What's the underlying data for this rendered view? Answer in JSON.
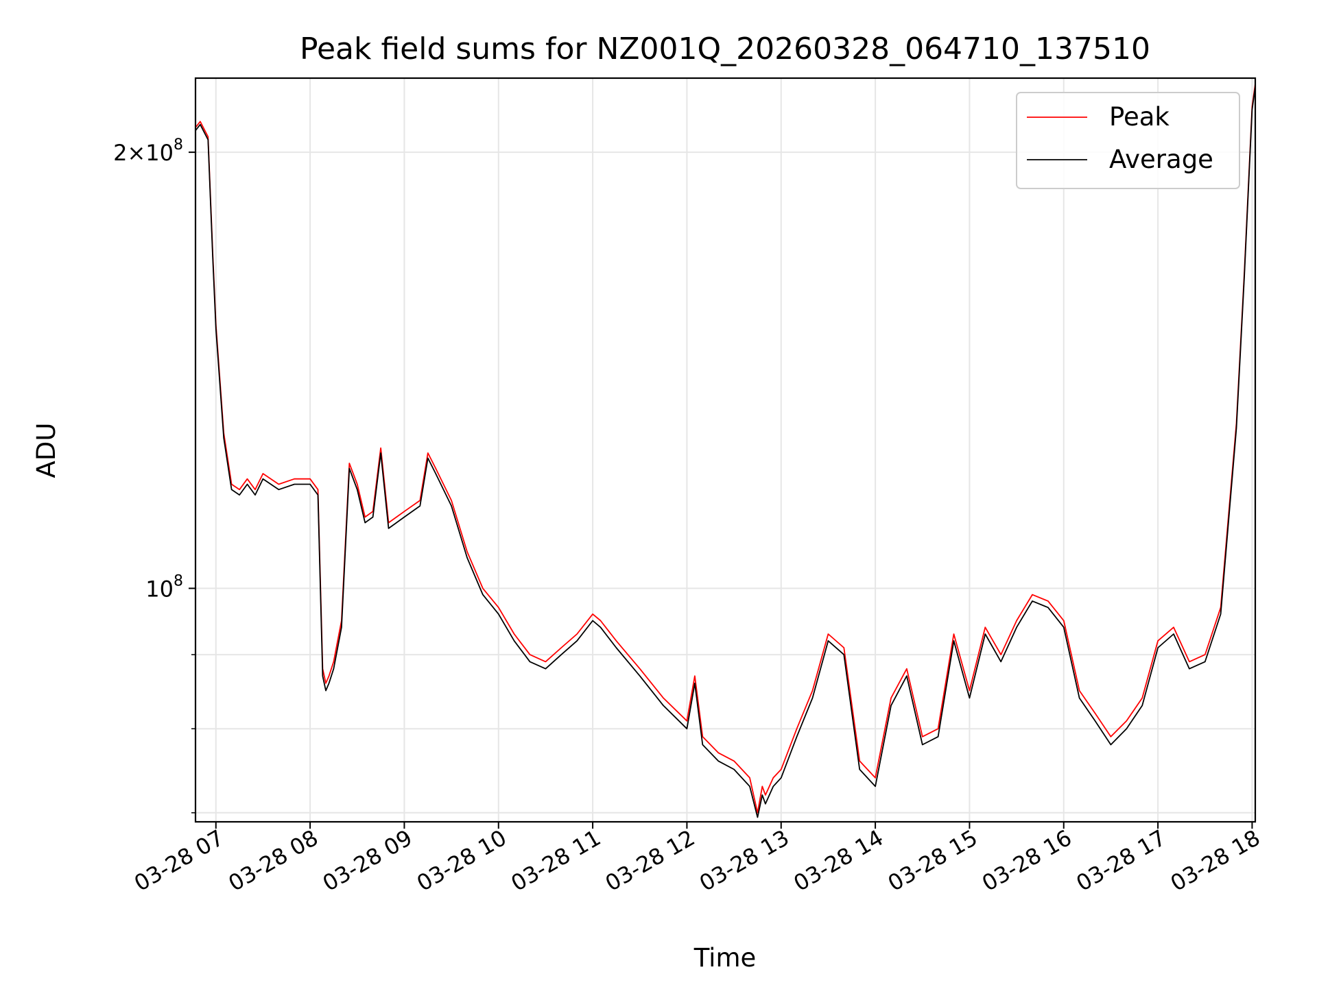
{
  "chart_data": {
    "type": "line",
    "title": "Peak field sums for NZ001Q_20260328_064710_137510",
    "xlabel": "Time",
    "ylabel": "ADU",
    "y_scale": "log",
    "grid": true,
    "legend_position": "top-right",
    "xlim": [
      "03-28 06:47",
      "03-28 18:02"
    ],
    "ylim": [
      69000000,
      225000000
    ],
    "x_ticks": [
      "03-28 07",
      "03-28 08",
      "03-28 09",
      "03-28 10",
      "03-28 11",
      "03-28 12",
      "03-28 13",
      "03-28 14",
      "03-28 15",
      "03-28 16",
      "03-28 17",
      "03-28 18"
    ],
    "y_ticks": [
      {
        "value": 200000000,
        "base": "2×10",
        "exp": "8"
      },
      {
        "value": 100000000,
        "base": "10",
        "exp": "8"
      }
    ],
    "y_minor_ticks": [
      70000000,
      80000000,
      90000000
    ],
    "colors": {
      "peak": "#ff0000",
      "average": "#000000",
      "grid": "#e6e6e6"
    },
    "x": [
      "06:47",
      "06:50",
      "06:55",
      "06:58",
      "07:00",
      "07:05",
      "07:10",
      "07:15",
      "07:20",
      "07:25",
      "07:30",
      "07:40",
      "07:50",
      "08:00",
      "08:05",
      "08:08",
      "08:10",
      "08:12",
      "08:15",
      "08:20",
      "08:25",
      "08:30",
      "08:35",
      "08:40",
      "08:45",
      "08:50",
      "08:55",
      "09:00",
      "09:10",
      "09:15",
      "09:20",
      "09:30",
      "09:40",
      "09:50",
      "10:00",
      "10:10",
      "10:20",
      "10:30",
      "10:40",
      "10:50",
      "11:00",
      "11:05",
      "11:15",
      "11:30",
      "11:45",
      "12:00",
      "12:05",
      "12:10",
      "12:20",
      "12:30",
      "12:40",
      "12:45",
      "12:48",
      "12:50",
      "12:55",
      "13:00",
      "13:10",
      "13:20",
      "13:30",
      "13:40",
      "13:50",
      "14:00",
      "14:10",
      "14:20",
      "14:30",
      "14:40",
      "14:50",
      "15:00",
      "15:10",
      "15:20",
      "15:30",
      "15:40",
      "15:50",
      "16:00",
      "16:10",
      "16:20",
      "16:30",
      "16:40",
      "16:50",
      "17:00",
      "17:10",
      "17:20",
      "17:30",
      "17:40",
      "17:50",
      "17:55",
      "18:00",
      "18:02"
    ],
    "series": [
      {
        "name": "Peak",
        "values": [
          208000000,
          210000000,
          205000000,
          170000000,
          152000000,
          128000000,
          118000000,
          117000000,
          119000000,
          117000000,
          120000000,
          118000000,
          119000000,
          119000000,
          117000000,
          88000000,
          86000000,
          87000000,
          89000000,
          95000000,
          122000000,
          118000000,
          112000000,
          113000000,
          125000000,
          111000000,
          112000000,
          113000000,
          115000000,
          124000000,
          121000000,
          115000000,
          106000000,
          100000000,
          97000000,
          93000000,
          90000000,
          89000000,
          91000000,
          93000000,
          96000000,
          95000000,
          92000000,
          88000000,
          84000000,
          81000000,
          87000000,
          79000000,
          77000000,
          76000000,
          74000000,
          70000000,
          73000000,
          72000000,
          74000000,
          75000000,
          80000000,
          85000000,
          93000000,
          91000000,
          76000000,
          74000000,
          84000000,
          88000000,
          79000000,
          80000000,
          93000000,
          85000000,
          94000000,
          90000000,
          95000000,
          99000000,
          98000000,
          95000000,
          85000000,
          82000000,
          79000000,
          81000000,
          84000000,
          92000000,
          94000000,
          89000000,
          90000000,
          97000000,
          130000000,
          165000000,
          215000000,
          223000000
        ]
      },
      {
        "name": "Average",
        "values": [
          207000000,
          209000000,
          204000000,
          169000000,
          151000000,
          127000000,
          117000000,
          116000000,
          118000000,
          116000000,
          119000000,
          117000000,
          118000000,
          118000000,
          116000000,
          87000000,
          85000000,
          86000000,
          88000000,
          94000000,
          121000000,
          117000000,
          111000000,
          112000000,
          124000000,
          110000000,
          111000000,
          112000000,
          114000000,
          123000000,
          120000000,
          114000000,
          105000000,
          99000000,
          96000000,
          92000000,
          89000000,
          88000000,
          90000000,
          92000000,
          95000000,
          94000000,
          91000000,
          87000000,
          83000000,
          80000000,
          86000000,
          78000000,
          76000000,
          75000000,
          73000000,
          69500000,
          72000000,
          71000000,
          73000000,
          74000000,
          79000000,
          84000000,
          92000000,
          90000000,
          75000000,
          73000000,
          83000000,
          87000000,
          78000000,
          79000000,
          92000000,
          84000000,
          93000000,
          89000000,
          94000000,
          98000000,
          97000000,
          94000000,
          84000000,
          81000000,
          78000000,
          80000000,
          83000000,
          91000000,
          93000000,
          88000000,
          89000000,
          96000000,
          129000000,
          164000000,
          214000000,
          222000000
        ]
      }
    ]
  }
}
